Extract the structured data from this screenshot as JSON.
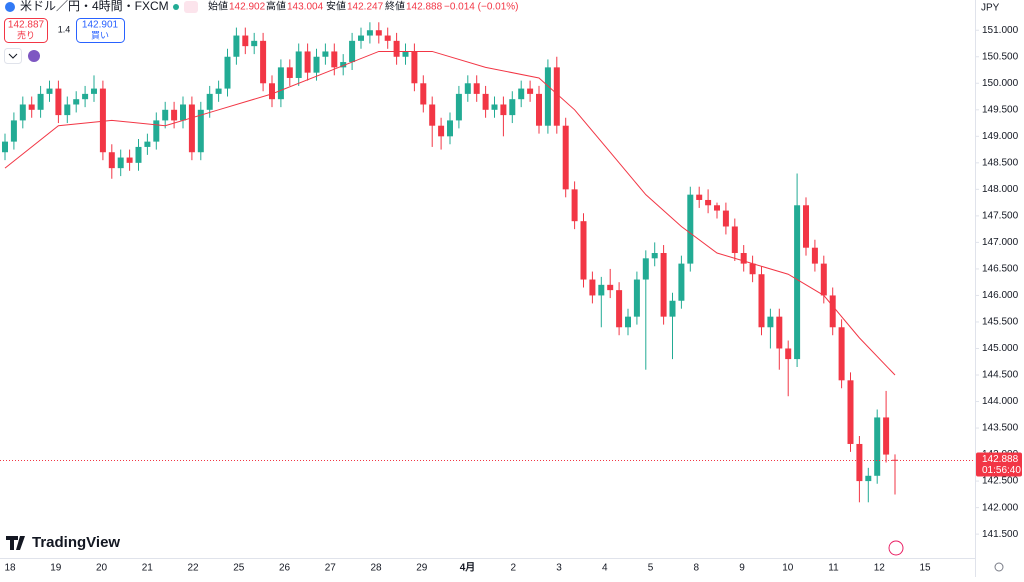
{
  "header": {
    "symbol": "米ドル／円・4時間・FXCM",
    "open_label": "始値",
    "open": "142.902",
    "high_label": "高値",
    "high": "143.004",
    "low_label": "安値",
    "low": "142.247",
    "close_label": "終値",
    "close": "142.888",
    "change": "−0.014 (−0.01%)",
    "sell_price": "142.887",
    "sell_label": "売り",
    "spread": "1.4",
    "buy_price": "142.901",
    "buy_label": "買い",
    "currency": "JPY",
    "last_price": "142.888",
    "countdown": "01:56:40",
    "brand": "TradingView"
  },
  "chart_data": {
    "type": "candlestick",
    "up_color": "#22ab94",
    "down_color": "#f23645",
    "x_labels": [
      "18",
      "19",
      "20",
      "21",
      "22",
      "25",
      "26",
      "27",
      "28",
      "29",
      "4月",
      "2",
      "3",
      "4",
      "5",
      "8",
      "9",
      "10",
      "11",
      "12",
      "15"
    ],
    "ylim": [
      141.05,
      151.57
    ],
    "yticks": [
      {
        "value": 141.5,
        "label": "141.500"
      },
      {
        "value": 142,
        "label": "142.000"
      },
      {
        "value": 142.5,
        "label": "142.500"
      },
      {
        "value": 143,
        "label": "143.000"
      },
      {
        "value": 143.5,
        "label": "143.500"
      },
      {
        "value": 144,
        "label": "144.000"
      },
      {
        "value": 144.5,
        "label": "144.500"
      },
      {
        "value": 145,
        "label": "145.000"
      },
      {
        "value": 145.5,
        "label": "145.500"
      },
      {
        "value": 146,
        "label": "146.000"
      },
      {
        "value": 146.5,
        "label": "146.500"
      },
      {
        "value": 147,
        "label": "147.000"
      },
      {
        "value": 147.5,
        "label": "147.500"
      },
      {
        "value": 148,
        "label": "148.000"
      },
      {
        "value": 148.5,
        "label": "148.500"
      },
      {
        "value": 149,
        "label": "149.000"
      },
      {
        "value": 149.5,
        "label": "149.500"
      },
      {
        "value": 150,
        "label": "150.000"
      },
      {
        "value": 150.5,
        "label": "150.500"
      },
      {
        "value": 151,
        "label": "151.000"
      }
    ],
    "open": [
      148.7,
      148.9,
      149.3,
      149.6,
      149.5,
      149.8,
      149.9,
      149.4,
      149.6,
      149.7,
      149.8,
      149.9,
      148.7,
      148.4,
      148.6,
      148.5,
      148.8,
      148.9,
      149.3,
      149.5,
      149.3,
      149.6,
      148.7,
      149.5,
      149.8,
      149.9,
      150.5,
      150.9,
      150.7,
      150.8,
      150.0,
      149.7,
      150.3,
      150.1,
      150.6,
      150.2,
      150.5,
      150.6,
      150.3,
      150.4,
      150.8,
      150.9,
      151.0,
      150.9,
      150.8,
      150.5,
      150.6,
      150.0,
      149.6,
      149.2,
      149.0,
      149.3,
      149.8,
      150.0,
      149.8,
      149.5,
      149.6,
      149.4,
      149.7,
      149.9,
      149.8,
      149.2,
      150.3,
      149.2,
      148.0,
      147.4,
      146.3,
      146.0,
      146.2,
      146.1,
      145.4,
      145.6,
      146.3,
      146.7,
      146.8,
      145.6,
      145.9,
      146.6,
      147.9,
      147.8,
      147.7,
      147.6,
      147.3,
      146.8,
      146.6,
      146.4,
      145.4,
      145.6,
      145.0,
      144.8,
      147.7,
      146.9,
      146.6,
      146.0,
      145.4,
      144.4,
      143.2,
      142.5,
      142.6,
      143.7,
      142.902
    ],
    "high": [
      149.05,
      149.45,
      149.75,
      149.75,
      149.95,
      150.05,
      150.05,
      149.75,
      149.85,
      149.95,
      150.15,
      150.05,
      148.85,
      148.75,
      148.75,
      148.95,
      149.05,
      149.45,
      149.65,
      149.65,
      149.75,
      149.75,
      149.65,
      149.95,
      150.05,
      150.65,
      151.05,
      151.05,
      150.95,
      150.95,
      150.15,
      150.45,
      150.45,
      150.75,
      150.75,
      150.65,
      150.75,
      150.75,
      150.55,
      150.95,
      151.05,
      151.15,
      151.15,
      151.05,
      150.95,
      150.75,
      150.75,
      150.15,
      149.75,
      149.35,
      149.45,
      149.95,
      150.15,
      150.15,
      149.95,
      149.75,
      149.75,
      149.85,
      150.05,
      150.05,
      149.95,
      150.45,
      150.5,
      149.35,
      148.15,
      147.55,
      146.45,
      146.35,
      146.5,
      146.25,
      145.75,
      146.45,
      146.85,
      147.0,
      146.95,
      146.05,
      146.75,
      148.05,
      148.05,
      148.0,
      147.75,
      147.75,
      147.45,
      146.95,
      146.75,
      146.55,
      145.75,
      145.75,
      145.15,
      148.3,
      147.85,
      147.05,
      146.75,
      146.15,
      145.55,
      144.55,
      143.35,
      142.75,
      143.85,
      144.2,
      143.004
    ],
    "low": [
      148.55,
      148.75,
      149.15,
      149.35,
      149.35,
      149.65,
      149.25,
      149.25,
      149.45,
      149.55,
      149.65,
      148.55,
      148.2,
      148.25,
      148.35,
      148.35,
      148.65,
      148.75,
      149.15,
      149.15,
      149.15,
      148.55,
      148.55,
      149.35,
      149.65,
      149.75,
      150.35,
      150.55,
      150.55,
      149.85,
      149.55,
      149.55,
      149.95,
      149.95,
      150.05,
      150.05,
      150.35,
      150.15,
      150.15,
      150.25,
      150.65,
      150.75,
      150.75,
      150.65,
      150.35,
      150.35,
      149.85,
      149.45,
      148.8,
      148.75,
      148.85,
      149.15,
      149.65,
      149.65,
      149.35,
      149.35,
      149.0,
      149.25,
      149.55,
      149.65,
      149.05,
      149.05,
      149.05,
      147.85,
      147.25,
      146.15,
      145.85,
      145.4,
      145.95,
      145.25,
      145.25,
      145.45,
      144.6,
      146.55,
      145.45,
      144.8,
      145.75,
      146.45,
      147.65,
      147.55,
      147.45,
      147.15,
      146.65,
      146.45,
      146.25,
      145.25,
      145.0,
      144.6,
      144.1,
      144.65,
      146.75,
      146.45,
      145.85,
      145.25,
      144.25,
      143.05,
      142.1,
      142.1,
      142.45,
      142.85,
      142.247
    ],
    "close": [
      148.9,
      149.3,
      149.6,
      149.5,
      149.8,
      149.9,
      149.4,
      149.6,
      149.7,
      149.8,
      149.9,
      148.7,
      148.4,
      148.6,
      148.5,
      148.8,
      148.9,
      149.3,
      149.5,
      149.3,
      149.6,
      148.7,
      149.5,
      149.8,
      149.9,
      150.5,
      150.9,
      150.7,
      150.8,
      150.0,
      149.7,
      150.3,
      150.1,
      150.6,
      150.2,
      150.5,
      150.6,
      150.3,
      150.4,
      150.8,
      150.9,
      151.0,
      150.9,
      150.8,
      150.5,
      150.6,
      150.0,
      149.6,
      149.2,
      149.0,
      149.3,
      149.8,
      150.0,
      149.8,
      149.5,
      149.6,
      149.4,
      149.7,
      149.9,
      149.8,
      149.2,
      150.3,
      149.2,
      148.0,
      147.4,
      146.3,
      146.0,
      146.2,
      146.1,
      145.4,
      145.6,
      146.3,
      146.7,
      146.8,
      145.6,
      145.9,
      146.6,
      147.9,
      147.8,
      147.7,
      147.6,
      147.3,
      146.8,
      146.6,
      146.4,
      145.4,
      145.6,
      145.0,
      144.8,
      147.7,
      146.9,
      146.6,
      146.0,
      145.4,
      144.4,
      143.2,
      142.5,
      142.6,
      143.7,
      143.0,
      142.888
    ],
    "ma": {
      "color": "#f23645",
      "x": [
        0,
        6,
        12,
        18,
        24,
        30,
        36,
        42,
        48,
        54,
        60,
        64,
        68,
        72,
        76,
        80,
        84,
        88,
        92,
        96,
        100
      ],
      "values": [
        148.4,
        149.2,
        149.3,
        149.2,
        149.5,
        149.8,
        150.2,
        150.6,
        150.6,
        150.3,
        150.1,
        149.5,
        148.7,
        147.9,
        147.3,
        146.8,
        146.6,
        146.4,
        146.0,
        145.2,
        144.5
      ]
    }
  }
}
